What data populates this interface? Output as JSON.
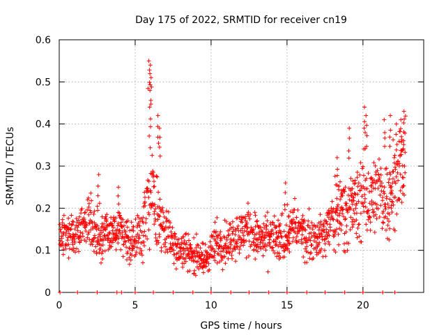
{
  "chart_data": {
    "type": "scatter",
    "title": "Day 175 of 2022, SRMTID for receiver cn19",
    "xlabel": "GPS time / hours",
    "ylabel": "SRMTID / TECUs",
    "xlim": [
      0,
      24
    ],
    "ylim": [
      0,
      0.6
    ],
    "xticks": [
      0,
      5,
      10,
      15,
      20
    ],
    "yticks": [
      0,
      0.1,
      0.2,
      0.3,
      0.4,
      0.5,
      0.6
    ],
    "grid": true,
    "marker": "+",
    "color": "#ff0000",
    "zero_line_x": [
      0.05,
      1.2,
      2.5,
      3.8,
      4.1,
      5.0,
      6.2,
      7.5,
      8.8,
      10.0,
      11.3,
      12.5,
      13.8,
      15.0,
      16.3,
      17.5,
      18.8,
      20.0,
      21.3,
      22.1
    ],
    "envelope": {
      "x": [
        0.0,
        0.5,
        1.0,
        1.5,
        2.0,
        2.5,
        3.0,
        3.5,
        4.0,
        4.5,
        5.0,
        5.5,
        6.0,
        6.5,
        7.0,
        7.5,
        8.0,
        8.5,
        9.0,
        9.5,
        10.0,
        10.5,
        11.0,
        11.5,
        12.0,
        12.5,
        13.0,
        13.5,
        14.0,
        14.5,
        15.0,
        15.5,
        16.0,
        16.5,
        17.0,
        17.5,
        18.0,
        18.5,
        19.0,
        19.5,
        20.0,
        20.5,
        21.0,
        21.5,
        22.0,
        22.5,
        22.8
      ],
      "mean": [
        0.13,
        0.14,
        0.13,
        0.16,
        0.17,
        0.13,
        0.15,
        0.14,
        0.15,
        0.13,
        0.12,
        0.15,
        0.23,
        0.18,
        0.14,
        0.12,
        0.1,
        0.1,
        0.09,
        0.07,
        0.1,
        0.12,
        0.12,
        0.13,
        0.14,
        0.15,
        0.13,
        0.12,
        0.13,
        0.12,
        0.14,
        0.16,
        0.14,
        0.13,
        0.13,
        0.14,
        0.17,
        0.2,
        0.2,
        0.21,
        0.22,
        0.24,
        0.23,
        0.22,
        0.26,
        0.3,
        0.31
      ],
      "spread": [
        0.04,
        0.05,
        0.04,
        0.05,
        0.05,
        0.05,
        0.05,
        0.05,
        0.05,
        0.05,
        0.05,
        0.06,
        0.12,
        0.08,
        0.05,
        0.04,
        0.04,
        0.04,
        0.04,
        0.04,
        0.04,
        0.05,
        0.05,
        0.05,
        0.05,
        0.05,
        0.05,
        0.05,
        0.05,
        0.05,
        0.05,
        0.05,
        0.05,
        0.05,
        0.04,
        0.05,
        0.07,
        0.08,
        0.07,
        0.08,
        0.09,
        0.09,
        0.08,
        0.08,
        0.09,
        0.09,
        0.08
      ]
    },
    "peaks": [
      {
        "x": 2.6,
        "y": 0.28
      },
      {
        "x": 3.9,
        "y": 0.25
      },
      {
        "x": 5.9,
        "y": 0.55
      },
      {
        "x": 6.0,
        "y": 0.54
      },
      {
        "x": 6.05,
        "y": 0.51
      },
      {
        "x": 5.95,
        "y": 0.44
      },
      {
        "x": 6.5,
        "y": 0.42
      },
      {
        "x": 6.6,
        "y": 0.39
      },
      {
        "x": 14.9,
        "y": 0.26
      },
      {
        "x": 18.3,
        "y": 0.32
      },
      {
        "x": 19.1,
        "y": 0.39
      },
      {
        "x": 20.1,
        "y": 0.44
      },
      {
        "x": 20.2,
        "y": 0.42
      },
      {
        "x": 21.4,
        "y": 0.41
      },
      {
        "x": 21.8,
        "y": 0.42
      },
      {
        "x": 22.2,
        "y": 0.4
      },
      {
        "x": 22.7,
        "y": 0.43
      },
      {
        "x": 22.5,
        "y": 0.41
      }
    ]
  }
}
